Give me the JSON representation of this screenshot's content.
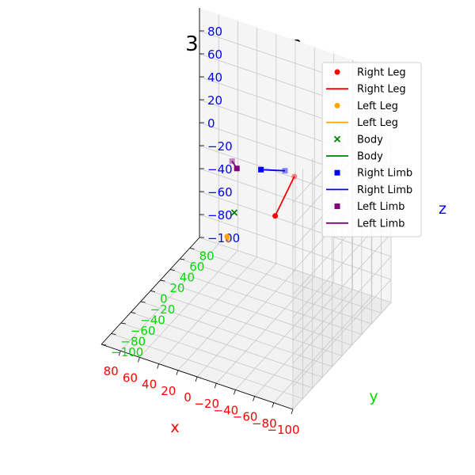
{
  "chart_data": {
    "type": "scatter3d",
    "title": "3D position",
    "xlabel": "x",
    "ylabel": "y",
    "zlabel": "z",
    "xlim": [
      -100,
      100
    ],
    "ylim": [
      -100,
      100
    ],
    "zlim": [
      -100,
      100
    ],
    "x_ticks": [
      "−100",
      "−80",
      "−60",
      "−40",
      "−20",
      "0",
      "20",
      "40",
      "60",
      "80"
    ],
    "y_ticks": [
      "−100",
      "−80",
      "−60",
      "−40",
      "−20",
      "0",
      "20",
      "40",
      "60",
      "80"
    ],
    "z_ticks": [
      "−100",
      "−80",
      "−60",
      "−40",
      "−20",
      "0",
      "20",
      "40",
      "60",
      "80"
    ],
    "axis_colors": {
      "x": "#ff0000",
      "y": "#00dd00",
      "z": "#0000ff"
    },
    "grid": true,
    "legend_position": "upper-right",
    "legend": [
      {
        "label": "Right Leg",
        "kind": "marker",
        "marker": "circle",
        "color": "#ff0000"
      },
      {
        "label": "Right Leg",
        "kind": "line",
        "color": "#ff0000"
      },
      {
        "label": "Left Leg",
        "kind": "marker",
        "marker": "circle",
        "color": "#ffa500"
      },
      {
        "label": "Left Leg",
        "kind": "line",
        "color": "#ffa500"
      },
      {
        "label": "Body",
        "kind": "marker",
        "marker": "x",
        "color": "#008000"
      },
      {
        "label": "Body",
        "kind": "line",
        "color": "#008000"
      },
      {
        "label": "Right Limb",
        "kind": "marker",
        "marker": "square",
        "color": "#0000ff"
      },
      {
        "label": "Right Limb",
        "kind": "line",
        "color": "#0000ff"
      },
      {
        "label": "Left Limb",
        "kind": "marker",
        "marker": "square",
        "color": "#800080"
      },
      {
        "label": "Left Limb",
        "kind": "line",
        "color": "#800080"
      }
    ],
    "series": [
      {
        "name": "Right Leg",
        "color": "#ff0000",
        "marker": "circle",
        "points": [
          {
            "x": -20,
            "y": 20,
            "z": -10
          },
          {
            "x": -40,
            "y": 20,
            "z": 30
          }
        ]
      },
      {
        "name": "Left Leg",
        "color": "#ffa500",
        "marker": "circle",
        "points": [
          {
            "x": 20,
            "y": 0,
            "z": -30
          },
          {
            "x": 15,
            "y": -8,
            "z": -28
          }
        ]
      },
      {
        "name": "Body",
        "color": "#008000",
        "marker": "x",
        "points": [
          {
            "x": 15,
            "y": 5,
            "z": -10
          }
        ]
      },
      {
        "name": "Right Limb",
        "color": "#0000ff",
        "marker": "square",
        "points": [
          {
            "x": 0,
            "y": 30,
            "z": 20
          },
          {
            "x": -20,
            "y": 40,
            "z": 20
          }
        ]
      },
      {
        "name": "Left Limb",
        "color": "#800080",
        "marker": "square",
        "points": [
          {
            "x": 20,
            "y": 20,
            "z": 20
          },
          {
            "x": 25,
            "y": 20,
            "z": 25
          }
        ]
      }
    ]
  }
}
